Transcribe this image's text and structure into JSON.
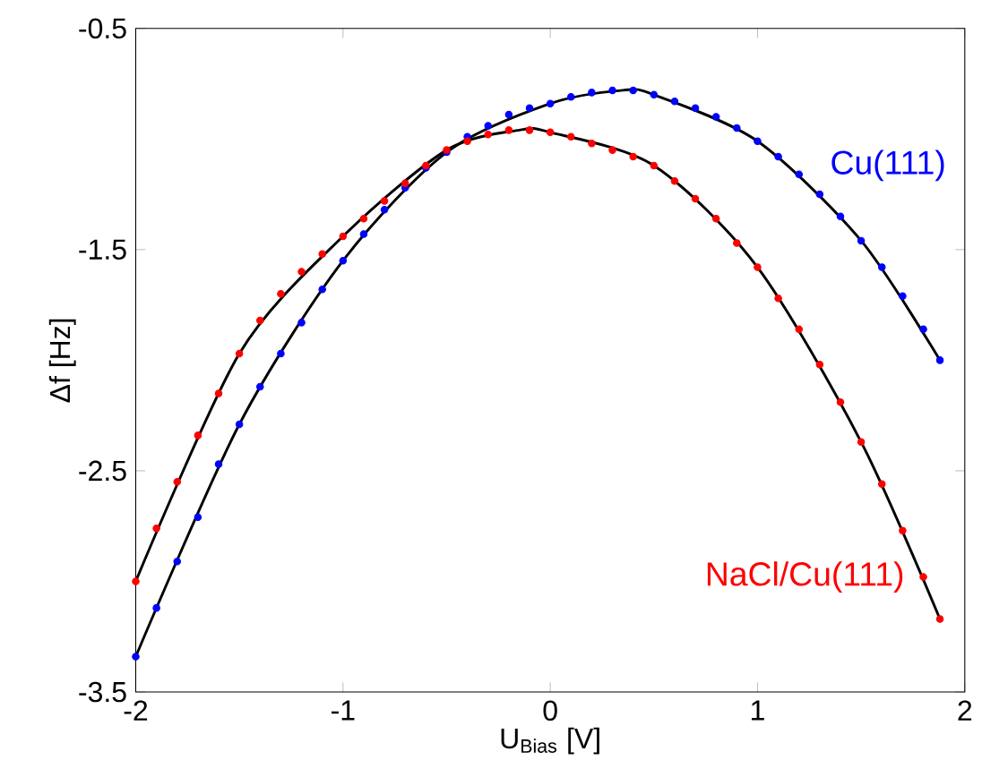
{
  "chart_data": {
    "type": "scatter",
    "xlabel": "U$_{Bias}$ [V]",
    "ylabel": "Δf [Hz]",
    "xlim": [
      -2,
      2
    ],
    "ylim": [
      -3.5,
      -0.5
    ],
    "xticks": [
      -2,
      -1,
      0,
      1,
      2
    ],
    "yticks": [
      -3.5,
      -2.5,
      -1.5,
      -0.5
    ],
    "grid": false,
    "series": [
      {
        "name": "Cu(111)",
        "color": "#0000ff",
        "marker": "circle",
        "x": [
          -2,
          -1.9,
          -1.8,
          -1.7,
          -1.6,
          -1.5,
          -1.4,
          -1.3,
          -1.2,
          -1.1,
          -1.0,
          -0.9,
          -0.8,
          -0.7,
          -0.6,
          -0.5,
          -0.4,
          -0.3,
          -0.2,
          -0.1,
          0,
          0.1,
          0.2,
          0.3,
          0.4,
          0.5,
          0.6,
          0.7,
          0.8,
          0.9,
          1.0,
          1.1,
          1.2,
          1.3,
          1.4,
          1.5,
          1.6,
          1.7,
          1.8,
          1.88
        ],
        "values": [
          -3.34,
          -3.12,
          -2.91,
          -2.71,
          -2.47,
          -2.29,
          -2.12,
          -1.97,
          -1.83,
          -1.68,
          -1.55,
          -1.43,
          -1.32,
          -1.22,
          -1.13,
          -1.06,
          -0.99,
          -0.94,
          -0.89,
          -0.86,
          -0.84,
          -0.81,
          -0.79,
          -0.78,
          -0.78,
          -0.8,
          -0.83,
          -0.86,
          -0.9,
          -0.95,
          -1.01,
          -1.08,
          -1.16,
          -1.25,
          -1.35,
          -1.46,
          -1.58,
          -1.71,
          -1.86,
          -2.0
        ]
      },
      {
        "name": "NaCl/Cu(111)",
        "color": "#ff0000",
        "marker": "circle",
        "x": [
          -2,
          -1.9,
          -1.8,
          -1.7,
          -1.6,
          -1.5,
          -1.4,
          -1.3,
          -1.2,
          -1.1,
          -1.0,
          -0.9,
          -0.8,
          -0.7,
          -0.6,
          -0.5,
          -0.4,
          -0.3,
          -0.2,
          -0.1,
          0,
          0.1,
          0.2,
          0.3,
          0.4,
          0.5,
          0.6,
          0.7,
          0.8,
          0.9,
          1.0,
          1.1,
          1.2,
          1.3,
          1.4,
          1.5,
          1.6,
          1.7,
          1.8,
          1.88
        ],
        "values": [
          -3.0,
          -2.76,
          -2.55,
          -2.34,
          -2.15,
          -1.97,
          -1.82,
          -1.7,
          -1.6,
          -1.52,
          -1.44,
          -1.36,
          -1.28,
          -1.2,
          -1.12,
          -1.05,
          -1.01,
          -0.98,
          -0.96,
          -0.96,
          -0.97,
          -0.99,
          -1.02,
          -1.05,
          -1.08,
          -1.12,
          -1.19,
          -1.27,
          -1.36,
          -1.47,
          -1.58,
          -1.72,
          -1.86,
          -2.02,
          -2.19,
          -2.37,
          -2.56,
          -2.77,
          -2.98,
          -3.17
        ]
      },
      {
        "type": "line",
        "color": "#000000",
        "marker": "none",
        "x": [
          -2,
          -1.5,
          -1.0,
          -0.5,
          0,
          0.35,
          0.5,
          1.0,
          1.5,
          1.88
        ],
        "values": [
          -3.34,
          -2.29,
          -1.55,
          -1.06,
          -0.84,
          -0.78,
          -0.8,
          -1.01,
          -1.46,
          -2.0
        ]
      },
      {
        "type": "line",
        "color": "#000000",
        "marker": "none",
        "x": [
          -2,
          -1.5,
          -1.0,
          -0.5,
          -0.15,
          0,
          0.5,
          1.0,
          1.5,
          1.88
        ],
        "values": [
          -3.0,
          -1.97,
          -1.44,
          -1.05,
          -0.96,
          -0.97,
          -1.12,
          -1.58,
          -2.37,
          -3.17
        ]
      }
    ]
  }
}
